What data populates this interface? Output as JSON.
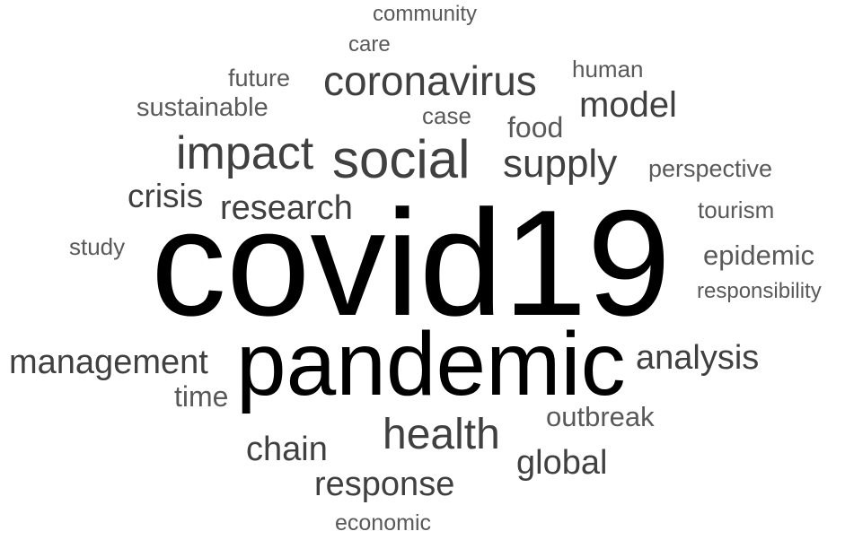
{
  "words": [
    {
      "text": "community",
      "weight": 1,
      "color": "#595959"
    },
    {
      "text": "care",
      "weight": 1,
      "color": "#595959"
    },
    {
      "text": "human",
      "weight": 1,
      "color": "#595959"
    },
    {
      "text": "future",
      "weight": 1,
      "color": "#595959"
    },
    {
      "text": "coronavirus",
      "weight": 4,
      "color": "#404040"
    },
    {
      "text": "sustainable",
      "weight": 2,
      "color": "#595959"
    },
    {
      "text": "case",
      "weight": 1,
      "color": "#595959"
    },
    {
      "text": "model",
      "weight": 3,
      "color": "#404040"
    },
    {
      "text": "food",
      "weight": 2,
      "color": "#595959"
    },
    {
      "text": "impact",
      "weight": 5,
      "color": "#404040"
    },
    {
      "text": "social",
      "weight": 6,
      "color": "#404040"
    },
    {
      "text": "supply",
      "weight": 4,
      "color": "#404040"
    },
    {
      "text": "perspective",
      "weight": 1,
      "color": "#595959"
    },
    {
      "text": "crisis",
      "weight": 3,
      "color": "#404040"
    },
    {
      "text": "research",
      "weight": 3,
      "color": "#404040"
    },
    {
      "text": "tourism",
      "weight": 1,
      "color": "#595959"
    },
    {
      "text": "study",
      "weight": 1,
      "color": "#595959"
    },
    {
      "text": "covid19",
      "weight": 10,
      "color": "#000000"
    },
    {
      "text": "epidemic",
      "weight": 2,
      "color": "#595959"
    },
    {
      "text": "responsibility",
      "weight": 1,
      "color": "#595959"
    },
    {
      "text": "management",
      "weight": 3,
      "color": "#404040"
    },
    {
      "text": "pandemic",
      "weight": 8,
      "color": "#000000"
    },
    {
      "text": "analysis",
      "weight": 3,
      "color": "#404040"
    },
    {
      "text": "time",
      "weight": 2,
      "color": "#595959"
    },
    {
      "text": "outbreak",
      "weight": 2,
      "color": "#595959"
    },
    {
      "text": "health",
      "weight": 4,
      "color": "#404040"
    },
    {
      "text": "chain",
      "weight": 3,
      "color": "#404040"
    },
    {
      "text": "global",
      "weight": 3,
      "color": "#404040"
    },
    {
      "text": "response",
      "weight": 3,
      "color": "#404040"
    },
    {
      "text": "economic",
      "weight": 1,
      "color": "#595959"
    }
  ]
}
